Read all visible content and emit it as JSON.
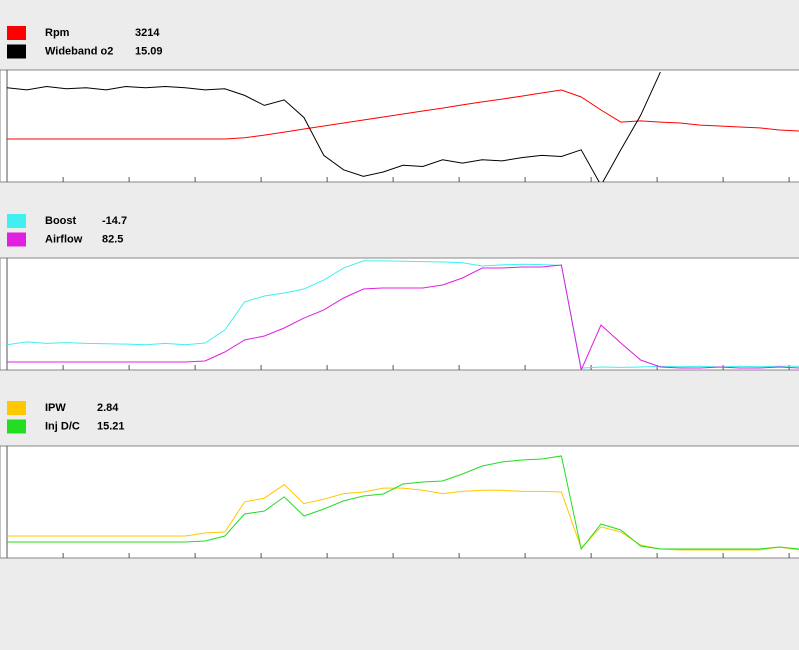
{
  "chart_data": [
    {
      "type": "line",
      "x": [
        0,
        3,
        6,
        9,
        12,
        15,
        18,
        21,
        24,
        27,
        30,
        33,
        36,
        39,
        42,
        45,
        48,
        51,
        54,
        57,
        60,
        63,
        66,
        69,
        72,
        75,
        78,
        81,
        84,
        87,
        90,
        93,
        96,
        99,
        102,
        105,
        108,
        111,
        114,
        117,
        120
      ],
      "xlim": [
        0,
        120
      ],
      "xticks": [
        8.5,
        18.5,
        28.5,
        38.5,
        48.5,
        58.5,
        68.5,
        78.5,
        88.5,
        98.5,
        108.5,
        118.5
      ],
      "series": [
        {
          "name": "Rpm",
          "value": 3214,
          "color": "#ff0000",
          "ylim": [
            0,
            7000
          ],
          "values": [
            2710,
            2710,
            2710,
            2710,
            2710,
            2710,
            2710,
            2710,
            2710,
            2710,
            2710,
            2710,
            2790,
            2960,
            3150,
            3340,
            3530,
            3720,
            3910,
            4100,
            4290,
            4480,
            4660,
            4860,
            5050,
            5230,
            5420,
            5610,
            5800,
            5360,
            4540,
            3780,
            3850,
            3780,
            3720,
            3590,
            3530,
            3470,
            3410,
            3280,
            3214
          ]
        },
        {
          "name": "Wideband o2",
          "value": 15.09,
          "color": "#000000",
          "ylim": [
            10,
            20
          ],
          "values": [
            18.5,
            18.3,
            18.6,
            18.4,
            18.5,
            18.3,
            18.6,
            18.5,
            18.6,
            18.5,
            18.3,
            18.4,
            17.8,
            16.9,
            17.4,
            15.8,
            12.4,
            11.1,
            10.5,
            10.9,
            11.5,
            11.4,
            12.0,
            11.7,
            12.0,
            11.9,
            12.2,
            12.4,
            12.3,
            12.9,
            9.7,
            12.9,
            16.0,
            19.9,
            null,
            null,
            null,
            null,
            null,
            null,
            null
          ]
        }
      ]
    },
    {
      "type": "line",
      "x": [
        0,
        3,
        6,
        9,
        12,
        15,
        18,
        21,
        24,
        27,
        30,
        33,
        36,
        39,
        42,
        45,
        48,
        51,
        54,
        57,
        60,
        63,
        66,
        69,
        72,
        75,
        78,
        81,
        84,
        87,
        90,
        93,
        96,
        99,
        102,
        105,
        108,
        111,
        114,
        117,
        120
      ],
      "xlim": [
        0,
        120
      ],
      "xticks": [
        8.5,
        18.5,
        28.5,
        38.5,
        48.5,
        58.5,
        68.5,
        78.5,
        88.5,
        98.5,
        108.5,
        118.5
      ],
      "series": [
        {
          "name": "Boost",
          "value": -14.7,
          "color": "#40f0f0",
          "ylim": [
            -15,
            15
          ],
          "values": [
            -8.2,
            -7.4,
            -7.8,
            -7.6,
            -7.8,
            -7.9,
            -8.0,
            -8.2,
            -7.8,
            -8.2,
            -7.7,
            -4.2,
            3.4,
            5.0,
            5.8,
            6.9,
            9.3,
            12.6,
            14.5,
            14.5,
            14.4,
            14.3,
            14.2,
            14.0,
            13.1,
            13.4,
            13.6,
            13.5,
            13.3,
            -14.5,
            -14.2,
            -14.3,
            -14.2,
            -14.0,
            -14.1,
            -14.0,
            -14.2,
            -14.0,
            -14.1,
            -14.0,
            -14.0
          ]
        },
        {
          "name": "Airflow",
          "value": 82.5,
          "color": "#e020e0",
          "ylim": [
            0,
            100
          ],
          "values": [
            7.2,
            7.2,
            7.2,
            7.2,
            7.2,
            7.2,
            7.2,
            7.2,
            7.2,
            7.2,
            8.1,
            16.2,
            27.0,
            30.6,
            37.8,
            46.8,
            54.1,
            64.9,
            73.0,
            73.9,
            73.9,
            73.9,
            76.6,
            82.9,
            91.9,
            91.9,
            92.8,
            92.8,
            94.6,
            0,
            40.5,
            24.3,
            9.0,
            2.7,
            1.8,
            1.8,
            2.7,
            1.8,
            1.8,
            2.7,
            1.8
          ]
        }
      ]
    },
    {
      "type": "line",
      "x": [
        0,
        3,
        6,
        9,
        12,
        15,
        18,
        21,
        24,
        27,
        30,
        33,
        36,
        39,
        42,
        45,
        48,
        51,
        54,
        57,
        60,
        63,
        66,
        69,
        72,
        75,
        78,
        81,
        84,
        87,
        90,
        93,
        96,
        99,
        102,
        105,
        108,
        111,
        114,
        117,
        120
      ],
      "xlim": [
        0,
        120
      ],
      "xticks": [
        8.5,
        18.5,
        28.5,
        38.5,
        48.5,
        58.5,
        68.5,
        78.5,
        88.5,
        98.5,
        108.5,
        118.5
      ],
      "series": [
        {
          "name": "IPW",
          "value": 2.84,
          "color": "#ffc800",
          "ylim": [
            0,
            10
          ],
          "values": [
            1.98,
            1.98,
            1.98,
            1.98,
            1.98,
            1.98,
            1.98,
            1.98,
            1.98,
            1.98,
            2.25,
            2.34,
            5.05,
            5.4,
            6.6,
            4.9,
            5.3,
            5.8,
            5.95,
            6.3,
            6.3,
            6.1,
            5.8,
            6.0,
            6.1,
            6.1,
            6.0,
            6.0,
            5.95,
            0.9,
            2.8,
            2.34,
            1.17,
            0.81,
            0.72,
            0.72,
            0.72,
            0.72,
            0.72,
            0.99,
            0.72
          ]
        },
        {
          "name": "Inj D/C",
          "value": 15.21,
          "color": "#22dd22",
          "ylim": [
            0,
            100
          ],
          "values": [
            14.4,
            14.4,
            14.4,
            14.4,
            14.4,
            14.4,
            14.4,
            14.4,
            14.4,
            14.4,
            15.3,
            19.8,
            39.6,
            42.3,
            55.0,
            37.8,
            44.1,
            51.4,
            55.9,
            57.7,
            66.7,
            68.5,
            69.4,
            75.7,
            82.9,
            86.5,
            88.3,
            89.2,
            91.9,
            8.1,
            30.6,
            25.2,
            10.8,
            8.1,
            8.1,
            8.1,
            8.1,
            8.1,
            8.1,
            9.9,
            8.1
          ]
        }
      ]
    }
  ]
}
